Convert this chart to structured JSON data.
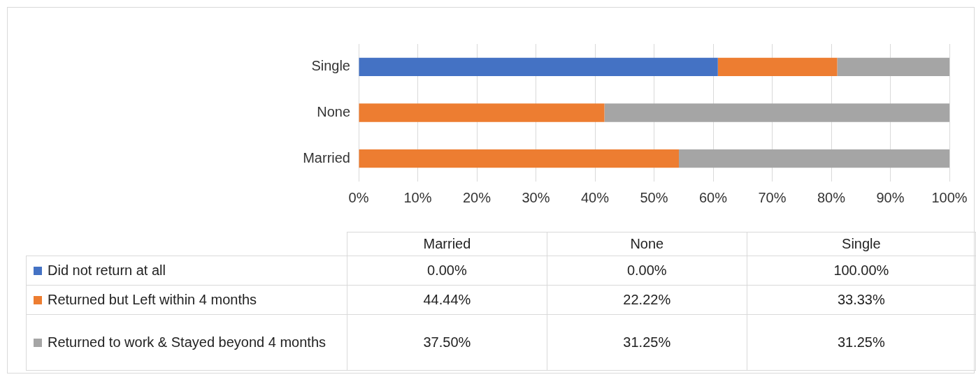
{
  "chart_data": {
    "type": "bar",
    "orientation": "horizontal",
    "stacked": true,
    "categories": [
      "Single",
      "None",
      "Married"
    ],
    "series": [
      {
        "name": "Did not return at all",
        "color": "#4472c4",
        "values": [
          60.8,
          0,
          0
        ]
      },
      {
        "name": "Returned but Left within 4 months",
        "color": "#ed7d31",
        "values": [
          20.2,
          41.6,
          54.2
        ]
      },
      {
        "name": "Returned to work & Stayed beyond 4 months",
        "color": "#a5a5a5",
        "values": [
          19.0,
          58.4,
          45.8
        ]
      }
    ],
    "xlim": [
      0,
      100
    ],
    "xticks": [
      {
        "value": 0,
        "label": "0%"
      },
      {
        "value": 10,
        "label": "10%"
      },
      {
        "value": 20,
        "label": "20%"
      },
      {
        "value": 30,
        "label": "30%"
      },
      {
        "value": 40,
        "label": "40%"
      },
      {
        "value": 50,
        "label": "50%"
      },
      {
        "value": 60,
        "label": "60%"
      },
      {
        "value": 70,
        "label": "70%"
      },
      {
        "value": 80,
        "label": "80%"
      },
      {
        "value": 90,
        "label": "90%"
      },
      {
        "value": 100,
        "label": "100%"
      }
    ],
    "grid": "x",
    "legend": "bottom",
    "annotations": [
      "0.00%",
      "0.00%",
      "100.00%",
      "44.44%",
      "22.22%",
      "33.33%",
      "37.50%",
      "31.25%",
      "31.25%"
    ]
  }
}
